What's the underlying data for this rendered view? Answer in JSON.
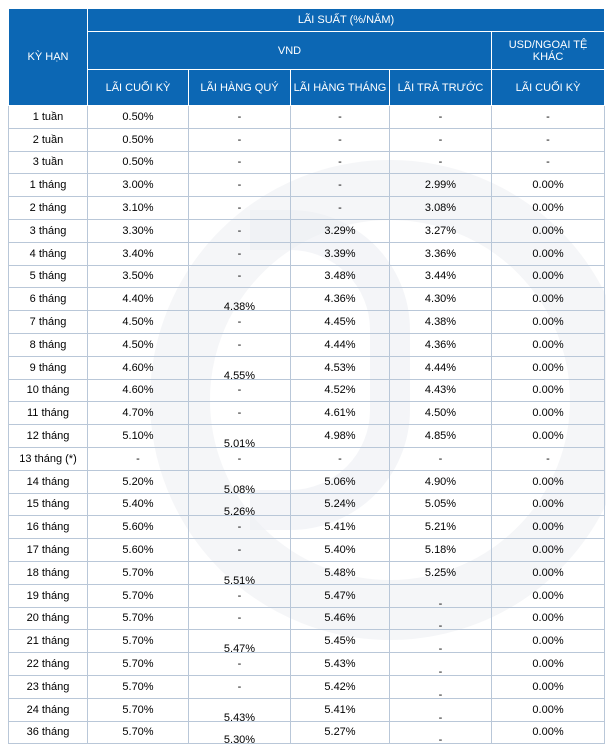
{
  "header": {
    "ky_han": "KỲ HẠN",
    "lai_suat": "LÃI SUẤT (%/NĂM)",
    "vnd": "VND",
    "usd": "USD/NGOẠI TỆ KHÁC",
    "col1": "LÃI CUỐI KỲ",
    "col2": "LÃI HÀNG QUÝ",
    "col3": "LÃI HÀNG THÁNG",
    "col4": "LÃI TRẢ TRƯỚC",
    "col5": "LÃI CUỐI KỲ"
  },
  "rows": [
    {
      "term": "1 tuần",
      "c1": "0.50%",
      "c2": "-",
      "c3": "-",
      "c4": "-",
      "c5": "-"
    },
    {
      "term": "2 tuần",
      "c1": "0.50%",
      "c2": "-",
      "c3": "-",
      "c4": "-",
      "c5": "-"
    },
    {
      "term": "3 tuần",
      "c1": "0.50%",
      "c2": "-",
      "c3": "-",
      "c4": "-",
      "c5": "-"
    },
    {
      "term": "1 tháng",
      "c1": "3.00%",
      "c2": "-",
      "c3": "-",
      "c4": "2.99%",
      "c5": "0.00%"
    },
    {
      "term": "2 tháng",
      "c1": "3.10%",
      "c2": "-",
      "c3": "-",
      "c4": "3.08%",
      "c5": "0.00%"
    },
    {
      "term": "3 tháng",
      "c1": "3.30%",
      "c2": "-",
      "c3": "3.29%",
      "c4": "3.27%",
      "c5": "0.00%"
    },
    {
      "term": "4 tháng",
      "c1": "3.40%",
      "c2": "-",
      "c3": "3.39%",
      "c4": "3.36%",
      "c5": "0.00%"
    },
    {
      "term": "5 tháng",
      "c1": "3.50%",
      "c2": "-",
      "c3": "3.48%",
      "c4": "3.44%",
      "c5": "0.00%"
    },
    {
      "term": "6 tháng",
      "c1": "4.40%",
      "c2": "4.38%",
      "c3": "4.36%",
      "c4": "4.30%",
      "c5": "0.00%"
    },
    {
      "term": "7 tháng",
      "c1": "4.50%",
      "c2": "-",
      "c3": "4.45%",
      "c4": "4.38%",
      "c5": "0.00%"
    },
    {
      "term": "8 tháng",
      "c1": "4.50%",
      "c2": "-",
      "c3": "4.44%",
      "c4": "4.36%",
      "c5": "0.00%"
    },
    {
      "term": "9 tháng",
      "c1": "4.60%",
      "c2": "4.55%",
      "c3": "4.53%",
      "c4": "4.44%",
      "c5": "0.00%"
    },
    {
      "term": "10 tháng",
      "c1": "4.60%",
      "c2": "-",
      "c3": "4.52%",
      "c4": "4.43%",
      "c5": "0.00%"
    },
    {
      "term": "11 tháng",
      "c1": "4.70%",
      "c2": "-",
      "c3": "4.61%",
      "c4": "4.50%",
      "c5": "0.00%"
    },
    {
      "term": "12 tháng",
      "c1": "5.10%",
      "c2": "5.01%",
      "c3": "4.98%",
      "c4": "4.85%",
      "c5": "0.00%"
    },
    {
      "term": "13 tháng (*)",
      "c1": "-",
      "c2": "-",
      "c3": "-",
      "c4": "-",
      "c5": "-"
    },
    {
      "term": "14 tháng",
      "c1": "5.20%",
      "c2": "5.08%",
      "c3": "5.06%",
      "c4": "4.90%",
      "c5": "0.00%"
    },
    {
      "term": "15 tháng",
      "c1": "5.40%",
      "c2": "5.26%",
      "c3": "5.24%",
      "c4": "5.05%",
      "c5": "0.00%"
    },
    {
      "term": "16 tháng",
      "c1": "5.60%",
      "c2": "-",
      "c3": "5.41%",
      "c4": "5.21%",
      "c5": "0.00%"
    },
    {
      "term": "17 tháng",
      "c1": "5.60%",
      "c2": "-",
      "c3": "5.40%",
      "c4": "5.18%",
      "c5": "0.00%"
    },
    {
      "term": "18 tháng",
      "c1": "5.70%",
      "c2": "5.51%",
      "c3": "5.48%",
      "c4": "5.25%",
      "c5": "0.00%"
    },
    {
      "term": "19 tháng",
      "c1": "5.70%",
      "c2": "-",
      "c3": "5.47%",
      "c4": "-",
      "c5": "0.00%"
    },
    {
      "term": "20 tháng",
      "c1": "5.70%",
      "c2": "-",
      "c3": "5.46%",
      "c4": "-",
      "c5": "0.00%"
    },
    {
      "term": "21 tháng",
      "c1": "5.70%",
      "c2": "5.47%",
      "c3": "5.45%",
      "c4": "-",
      "c5": "0.00%"
    },
    {
      "term": "22 tháng",
      "c1": "5.70%",
      "c2": "-",
      "c3": "5.43%",
      "c4": "-",
      "c5": "0.00%"
    },
    {
      "term": "23 tháng",
      "c1": "5.70%",
      "c2": "-",
      "c3": "5.42%",
      "c4": "-",
      "c5": "0.00%"
    },
    {
      "term": "24 tháng",
      "c1": "5.70%",
      "c2": "5.43%",
      "c3": "5.41%",
      "c4": "-",
      "c5": "0.00%"
    },
    {
      "term": "36 tháng",
      "c1": "5.70%",
      "c2": "5.30%",
      "c3": "5.27%",
      "c4": "-",
      "c5": "0.00%"
    }
  ]
}
